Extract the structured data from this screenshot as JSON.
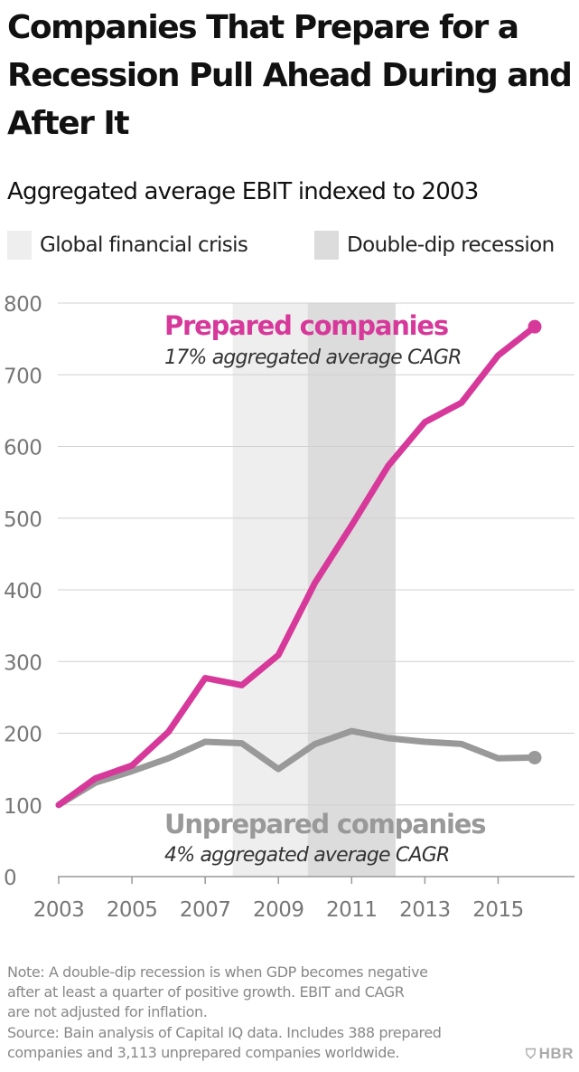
{
  "title": "Companies That Prepare for a Recession Pull Ahead During and After It",
  "subtitle": "Aggregated average EBIT indexed to 2003",
  "legend": [
    {
      "label": "Global financial crisis",
      "color": "#eeeeee"
    },
    {
      "label": "Double-dip recession",
      "color": "#dcdcdc"
    }
  ],
  "chart_data": {
    "type": "line",
    "x": [
      2003,
      2004,
      2005,
      2006,
      2007,
      2008,
      2009,
      2010,
      2011,
      2012,
      2013,
      2014,
      2015,
      2016
    ],
    "series": [
      {
        "name": "Prepared companies",
        "annotation": "17% aggregated average CAGR",
        "color": "#d6399a",
        "values": [
          100,
          137,
          155,
          202,
          277,
          267,
          309,
          410,
          490,
          573,
          634,
          661,
          727,
          767
        ]
      },
      {
        "name": "Unprepared companies",
        "annotation": "4% aggregated average CAGR",
        "color": "#999999",
        "values": [
          100,
          131,
          147,
          165,
          188,
          186,
          150,
          185,
          203,
          193,
          188,
          185,
          165,
          166
        ]
      }
    ],
    "shaded_regions": [
      {
        "label": "Global financial crisis",
        "from": 2007.75,
        "to": 2009.8,
        "color": "#eeeeee"
      },
      {
        "label": "Double-dip recession",
        "from": 2009.8,
        "to": 2012.2,
        "color": "#dcdcdc"
      }
    ],
    "ylim": [
      0,
      800
    ],
    "yticks": [
      0,
      100,
      200,
      300,
      400,
      500,
      600,
      700,
      800
    ],
    "xticks": [
      2003,
      2005,
      2007,
      2009,
      2011,
      2013,
      2015
    ],
    "grid": true,
    "xlabel": "",
    "ylabel": ""
  },
  "note": [
    "Note: A double-dip recession is when GDP becomes negative",
    "after at least a quarter of positive growth. EBIT and CAGR",
    "are not adjusted for inflation.",
    "Source: Bain analysis of Capital IQ data. Includes 388 prepared",
    "companies and 3,113 unprepared companies worldwide."
  ],
  "logo": "HBR",
  "logo_icon": "shield-icon"
}
